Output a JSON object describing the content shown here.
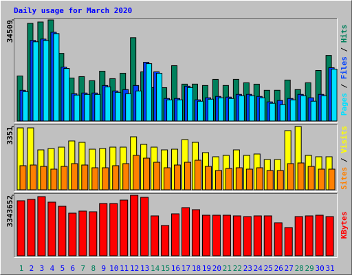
{
  "title": "Daily usage for March 2020",
  "legend_separator": " / ",
  "chart_data": [
    {
      "type": "bar",
      "ylim": [
        0,
        34509
      ],
      "yticks": [
        34509
      ],
      "series": [
        {
          "name": "Hits",
          "color": "#00805c",
          "values": [
            15389,
            33343,
            33810,
            34509,
            23084,
            14690,
            15156,
            13757,
            17021,
            14457,
            16322,
            28447,
            16788,
            11425,
            11380,
            18887,
            12591,
            12600,
            12125,
            14223,
            12130,
            14230,
            13057,
            12580,
            10493,
            10500,
            13990,
            10726,
            13060,
            17255,
            22384
          ]
        },
        {
          "name": "Files",
          "color": "#0040ff",
          "values": [
            10493,
            27514,
            27980,
            30312,
            18420,
            9327,
            9560,
            9560,
            12125,
            10260,
            10726,
            12125,
            20052,
            16788,
            7695,
            7690,
            11892,
            7228,
            7928,
            8394,
            8161,
            9094,
            9100,
            8394,
            6529,
            6995,
            7695,
            9094,
            7928,
            9094,
            18187
          ]
        },
        {
          "name": "Pages",
          "color": "#00e0ff",
          "values": [
            10023,
            27044,
            27510,
            29842,
            17950,
            8857,
            9090,
            9090,
            11655,
            9790,
            9327,
            10260,
            19582,
            16318,
            7225,
            7228,
            11422,
            6758,
            7458,
            7924,
            7691,
            8624,
            8630,
            7924,
            6059,
            5596,
            7225,
            8624,
            6762,
            8624,
            17717
          ]
        }
      ]
    },
    {
      "type": "bar",
      "ylim": [
        0,
        3351
      ],
      "yticks": [
        3351
      ],
      "series": [
        {
          "name": "Visits",
          "color": "#ffff00",
          "values": [
            3278,
            3278,
            2112,
            2185,
            2258,
            2586,
            2513,
            2149,
            2185,
            2258,
            2258,
            2804,
            2404,
            2258,
            2112,
            2149,
            2659,
            2513,
            1967,
            1748,
            1821,
            2112,
            1821,
            1894,
            1602,
            1602,
            3132,
            3351,
            1821,
            1748,
            1748
          ]
        },
        {
          "name": "Sites",
          "color": "#ff8000",
          "values": [
            1275,
            1311,
            1238,
            1093,
            1238,
            1384,
            1311,
            1165,
            1165,
            1275,
            1384,
            1821,
            1675,
            1457,
            1165,
            1311,
            1457,
            1566,
            1238,
            1020,
            1129,
            1165,
            1093,
            1165,
            1020,
            1020,
            1384,
            1420,
            1238,
            1093,
            1093
          ]
        }
      ]
    },
    {
      "type": "bar",
      "ylim": [
        0,
        3343652
      ],
      "yticks": [
        3343652
      ],
      "categories": [
        "1",
        "2",
        "3",
        "4",
        "5",
        "6",
        "7",
        "8",
        "9",
        "10",
        "11",
        "12",
        "13",
        "14",
        "15",
        "16",
        "17",
        "18",
        "19",
        "20",
        "21",
        "22",
        "23",
        "24",
        "25",
        "26",
        "27",
        "28",
        "29",
        "30",
        "31"
      ],
      "category_colors": [
        "#00805c",
        "#0000ff",
        "#0000ff",
        "#0000ff",
        "#0000ff",
        "#0000ff",
        "#00805c",
        "#00805c",
        "#0000ff",
        "#0000ff",
        "#0000ff",
        "#0000ff",
        "#0000ff",
        "#00805c",
        "#00805c",
        "#0000ff",
        "#0000ff",
        "#0000ff",
        "#0000ff",
        "#0000ff",
        "#00805c",
        "#00805c",
        "#0000ff",
        "#0000ff",
        "#0000ff",
        "#0000ff",
        "#0000ff",
        "#00805c",
        "#00805c",
        "#0000ff",
        "#0000ff"
      ],
      "series": [
        {
          "name": "KBytes",
          "color": "#ff0000",
          "values": [
            3039680,
            3115672,
            3267656,
            2963688,
            2735712,
            2355752,
            2469740,
            2431744,
            2887696,
            2887700,
            3077676,
            3343652,
            3229660,
            2203768,
            1671824,
            2317756,
            2659720,
            2545732,
            2241764,
            2241770,
            2241760,
            2203768,
            2165772,
            2203770,
            2203760,
            1823808,
            1557836,
            2165780,
            2203750,
            2241750,
            2165760
          ]
        }
      ]
    }
  ]
}
